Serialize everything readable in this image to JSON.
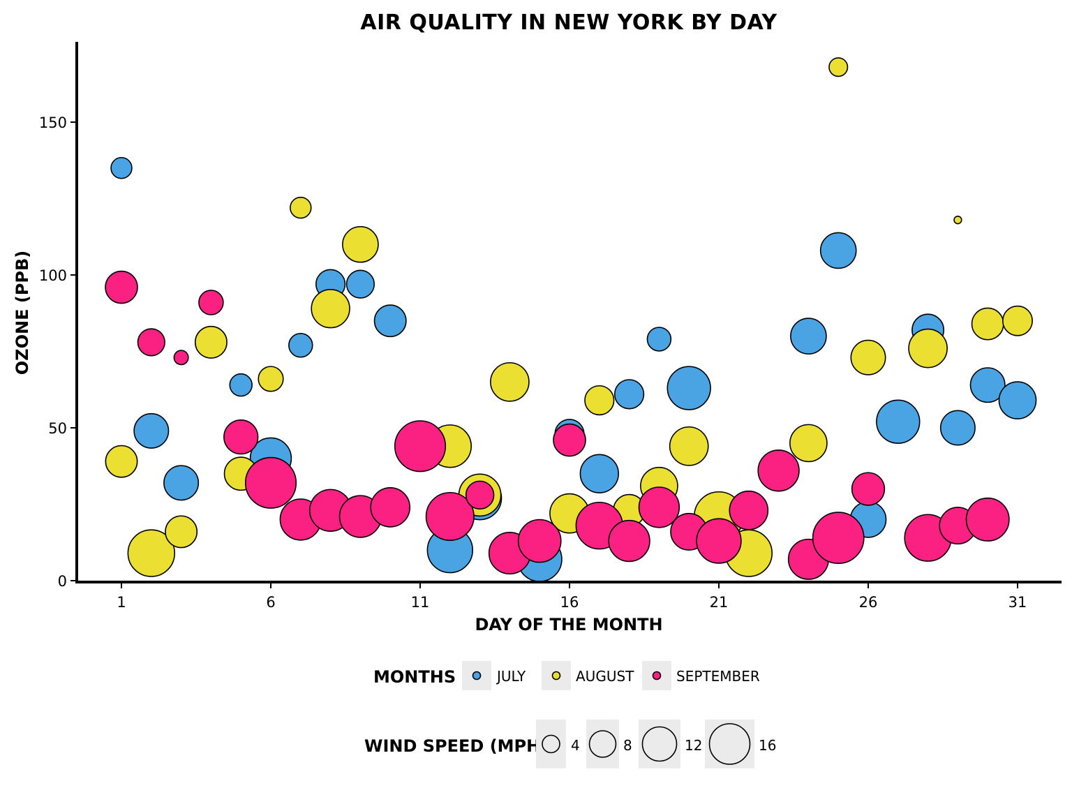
{
  "chart_data": {
    "type": "scatter",
    "title": "AIR QUALITY IN NEW YORK BY DAY",
    "xlabel": "DAY OF THE MONTH",
    "ylabel": "OZONE (PPB)",
    "xlim": [
      -0.5,
      32.5
    ],
    "ylim": [
      -1,
      176
    ],
    "xticks": [
      1,
      6,
      11,
      16,
      21,
      26,
      31
    ],
    "yticks": [
      0,
      50,
      100,
      150
    ],
    "grid": false,
    "legend_placement": "bottom",
    "color_legend": {
      "title": "MONTHS",
      "entries": [
        {
          "name": "JULY",
          "color": "#4aa3e3"
        },
        {
          "name": "AUGUST",
          "color": "#ebe032"
        },
        {
          "name": "SEPTEMBER",
          "color": "#fa2182"
        }
      ]
    },
    "size_legend": {
      "title": "WIND SPEED (MPH)",
      "entries": [
        {
          "label": "4",
          "value": 4
        },
        {
          "label": "8",
          "value": 8
        },
        {
          "label": "12",
          "value": 12
        },
        {
          "label": "16",
          "value": 16
        }
      ]
    },
    "series": [
      {
        "name": "JULY",
        "color": "#4aa3e3",
        "points": [
          {
            "day": 1,
            "ozone": 135,
            "wind": 8.0
          },
          {
            "day": 2,
            "ozone": 49,
            "wind": 13.8
          },
          {
            "day": 3,
            "ozone": 32,
            "wind": 13.8
          },
          {
            "day": 5,
            "ozone": 64,
            "wind": 8.6
          },
          {
            "day": 6,
            "ozone": 40,
            "wind": 16.6
          },
          {
            "day": 7,
            "ozone": 77,
            "wind": 9.2
          },
          {
            "day": 8,
            "ozone": 97,
            "wind": 11.5
          },
          {
            "day": 9,
            "ozone": 97,
            "wind": 10.9
          },
          {
            "day": 10,
            "ozone": 85,
            "wind": 12.6
          },
          {
            "day": 12,
            "ozone": 10,
            "wind": 18.4
          },
          {
            "day": 13,
            "ozone": 27,
            "wind": 17.5
          },
          {
            "day": 15,
            "ozone": 7,
            "wind": 18.0
          },
          {
            "day": 16,
            "ozone": 48,
            "wind": 11.5
          },
          {
            "day": 17,
            "ozone": 35,
            "wind": 15.4
          },
          {
            "day": 18,
            "ozone": 61,
            "wind": 11.5
          },
          {
            "day": 19,
            "ozone": 79,
            "wind": 9.2
          },
          {
            "day": 20,
            "ozone": 63,
            "wind": 17.5
          },
          {
            "day": 24,
            "ozone": 80,
            "wind": 14.3
          },
          {
            "day": 25,
            "ozone": 108,
            "wind": 14.3
          },
          {
            "day": 26,
            "ozone": 20,
            "wind": 14.3
          },
          {
            "day": 27,
            "ozone": 52,
            "wind": 17.5
          },
          {
            "day": 28,
            "ozone": 82,
            "wind": 12.6
          },
          {
            "day": 29,
            "ozone": 50,
            "wind": 13.8
          },
          {
            "day": 30,
            "ozone": 64,
            "wind": 13.8
          },
          {
            "day": 31,
            "ozone": 59,
            "wind": 14.9
          }
        ]
      },
      {
        "name": "AUGUST",
        "color": "#ebe032",
        "points": [
          {
            "day": 1,
            "ozone": 39,
            "wind": 12.6
          },
          {
            "day": 2,
            "ozone": 9,
            "wind": 19.0
          },
          {
            "day": 3,
            "ozone": 16,
            "wind": 12.6
          },
          {
            "day": 4,
            "ozone": 78,
            "wind": 12.6
          },
          {
            "day": 5,
            "ozone": 35,
            "wind": 13.2
          },
          {
            "day": 6,
            "ozone": 66,
            "wind": 9.7
          },
          {
            "day": 7,
            "ozone": 122,
            "wind": 8.0
          },
          {
            "day": 8,
            "ozone": 89,
            "wind": 15.4
          },
          {
            "day": 9,
            "ozone": 110,
            "wind": 14.3
          },
          {
            "day": 12,
            "ozone": 44,
            "wind": 17.2
          },
          {
            "day": 13,
            "ozone": 28,
            "wind": 17.0
          },
          {
            "day": 14,
            "ozone": 65,
            "wind": 15.5
          },
          {
            "day": 16,
            "ozone": 22,
            "wind": 15.8
          },
          {
            "day": 17,
            "ozone": 59,
            "wind": 11.5
          },
          {
            "day": 18,
            "ozone": 23,
            "wind": 12.6
          },
          {
            "day": 19,
            "ozone": 31,
            "wind": 14.9
          },
          {
            "day": 20,
            "ozone": 44,
            "wind": 15.5
          },
          {
            "day": 21,
            "ozone": 21,
            "wind": 20.1
          },
          {
            "day": 22,
            "ozone": 9,
            "wind": 19.0
          },
          {
            "day": 24,
            "ozone": 45,
            "wind": 14.9
          },
          {
            "day": 25,
            "ozone": 168,
            "wind": 7.0
          },
          {
            "day": 26,
            "ozone": 73,
            "wind": 13.8
          },
          {
            "day": 28,
            "ozone": 76,
            "wind": 15.5
          },
          {
            "day": 29,
            "ozone": 118,
            "wind": 2.3
          },
          {
            "day": 30,
            "ozone": 84,
            "wind": 12.6
          },
          {
            "day": 31,
            "ozone": 85,
            "wind": 11.7
          }
        ]
      },
      {
        "name": "SEPTEMBER",
        "color": "#fa2182",
        "points": [
          {
            "day": 1,
            "ozone": 96,
            "wind": 12.8
          },
          {
            "day": 2,
            "ozone": 78,
            "wind": 10.6
          },
          {
            "day": 3,
            "ozone": 73,
            "wind": 5.2
          },
          {
            "day": 4,
            "ozone": 91,
            "wind": 9.5
          },
          {
            "day": 5,
            "ozone": 47,
            "wind": 13.6
          },
          {
            "day": 6,
            "ozone": 32,
            "wind": 20.7
          },
          {
            "day": 7,
            "ozone": 20,
            "wind": 16.6
          },
          {
            "day": 8,
            "ozone": 23,
            "wind": 16.9
          },
          {
            "day": 9,
            "ozone": 21,
            "wind": 16.9
          },
          {
            "day": 10,
            "ozone": 24,
            "wind": 15.8
          },
          {
            "day": 11,
            "ozone": 44,
            "wind": 20.7
          },
          {
            "day": 12,
            "ozone": 21,
            "wind": 19.5
          },
          {
            "day": 13,
            "ozone": 28,
            "wind": 11.0
          },
          {
            "day": 14,
            "ozone": 9,
            "wind": 16.8
          },
          {
            "day": 15,
            "ozone": 13,
            "wind": 17.3
          },
          {
            "day": 16,
            "ozone": 46,
            "wind": 12.8
          },
          {
            "day": 17,
            "ozone": 18,
            "wind": 19.0
          },
          {
            "day": 18,
            "ozone": 13,
            "wind": 16.6
          },
          {
            "day": 19,
            "ozone": 24,
            "wind": 16.3
          },
          {
            "day": 20,
            "ozone": 16,
            "wind": 14.7
          },
          {
            "day": 21,
            "ozone": 13,
            "wind": 18.1
          },
          {
            "day": 22,
            "ozone": 23,
            "wind": 15.5
          },
          {
            "day": 23,
            "ozone": 36,
            "wind": 16.6
          },
          {
            "day": 24,
            "ozone": 7,
            "wind": 16.2
          },
          {
            "day": 25,
            "ozone": 14,
            "wind": 20.9
          },
          {
            "day": 26,
            "ozone": 30,
            "wind": 13.0
          },
          {
            "day": 28,
            "ozone": 14,
            "wind": 19.0
          },
          {
            "day": 29,
            "ozone": 18,
            "wind": 14.7
          },
          {
            "day": 30,
            "ozone": 20,
            "wind": 17.4
          }
        ]
      }
    ]
  }
}
